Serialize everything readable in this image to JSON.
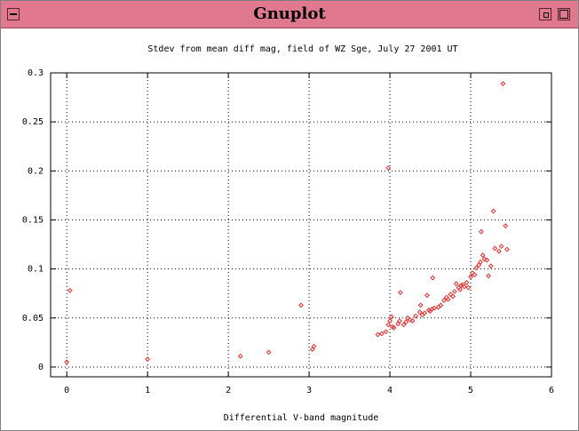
{
  "window": {
    "title": "Gnuplot"
  },
  "chart_data": {
    "type": "scatter",
    "title": "Stdev from mean diff mag, field of WZ Sge, July 27 2001 UT",
    "xlabel": "Differential V-band magnitude",
    "ylabel": "",
    "xlim": [
      -0.2,
      6
    ],
    "ylim": [
      -0.01,
      0.3
    ],
    "xticks": [
      "0",
      "1",
      "2",
      "3",
      "4",
      "5",
      "6"
    ],
    "yticks": [
      "0",
      "0.05",
      "0.1",
      "0.15",
      "0.2",
      "0.25",
      "0.3"
    ],
    "grid": true,
    "marker_color": "#e03030",
    "points": [
      [
        0.0,
        0.005
      ],
      [
        0.04,
        0.078
      ],
      [
        1.0,
        0.008
      ],
      [
        2.15,
        0.011
      ],
      [
        2.5,
        0.015
      ],
      [
        2.9,
        0.063
      ],
      [
        3.04,
        0.018
      ],
      [
        3.06,
        0.021
      ],
      [
        3.85,
        0.033
      ],
      [
        3.9,
        0.034
      ],
      [
        3.95,
        0.036
      ],
      [
        3.98,
        0.203
      ],
      [
        3.98,
        0.043
      ],
      [
        4.0,
        0.047
      ],
      [
        4.02,
        0.051
      ],
      [
        4.03,
        0.041
      ],
      [
        4.05,
        0.04
      ],
      [
        4.1,
        0.044
      ],
      [
        4.12,
        0.047
      ],
      [
        4.13,
        0.076
      ],
      [
        4.17,
        0.043
      ],
      [
        4.2,
        0.046
      ],
      [
        4.22,
        0.05
      ],
      [
        4.25,
        0.048
      ],
      [
        4.28,
        0.047
      ],
      [
        4.32,
        0.052
      ],
      [
        4.37,
        0.056
      ],
      [
        4.38,
        0.063
      ],
      [
        4.4,
        0.053
      ],
      [
        4.43,
        0.055
      ],
      [
        4.46,
        0.073
      ],
      [
        4.48,
        0.058
      ],
      [
        4.5,
        0.057
      ],
      [
        4.52,
        0.059
      ],
      [
        4.53,
        0.091
      ],
      [
        4.55,
        0.06
      ],
      [
        4.6,
        0.061
      ],
      [
        4.63,
        0.063
      ],
      [
        4.67,
        0.068
      ],
      [
        4.7,
        0.071
      ],
      [
        4.72,
        0.069
      ],
      [
        4.75,
        0.074
      ],
      [
        4.78,
        0.072
      ],
      [
        4.8,
        0.077
      ],
      [
        4.82,
        0.085
      ],
      [
        4.85,
        0.081
      ],
      [
        4.87,
        0.079
      ],
      [
        4.88,
        0.083
      ],
      [
        4.9,
        0.084
      ],
      [
        4.92,
        0.082
      ],
      [
        4.95,
        0.086
      ],
      [
        4.97,
        0.081
      ],
      [
        5.0,
        0.092
      ],
      [
        5.02,
        0.096
      ],
      [
        5.05,
        0.094
      ],
      [
        5.07,
        0.101
      ],
      [
        5.1,
        0.104
      ],
      [
        5.12,
        0.107
      ],
      [
        5.13,
        0.138
      ],
      [
        5.15,
        0.114
      ],
      [
        5.17,
        0.11
      ],
      [
        5.2,
        0.109
      ],
      [
        5.22,
        0.093
      ],
      [
        5.25,
        0.103
      ],
      [
        5.28,
        0.159
      ],
      [
        5.3,
        0.121
      ],
      [
        5.35,
        0.118
      ],
      [
        5.38,
        0.123
      ],
      [
        5.4,
        0.289
      ],
      [
        5.43,
        0.144
      ],
      [
        5.45,
        0.12
      ]
    ]
  }
}
